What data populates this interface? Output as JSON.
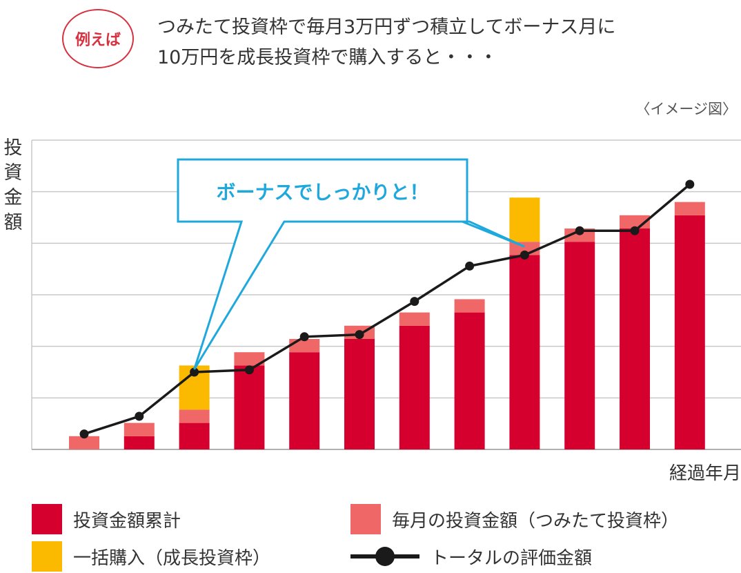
{
  "header": {
    "badge": "例えば",
    "line1": "つみたて投資枠で毎月3万円ずつ積立してボーナス月に",
    "line2": "10万円を成長投資枠で購入すると・・・"
  },
  "image_note": "〈イメージ図〉",
  "callout_text": "ボーナスでしっかりと！",
  "colors": {
    "cumulative": "#d6002f",
    "monthly": "#f06768",
    "lump": "#fbb900",
    "line": "#1a1a1a",
    "callout": "#1fa8dc",
    "grid": "#c8c8c8"
  },
  "legend": {
    "cumulative": "投資金額累計",
    "monthly": "毎月の投資金額（つみたて投資枠）",
    "lump": "一括購入（成長投資枠）",
    "line": "トータルの評価金額"
  },
  "chart_data": {
    "type": "bar",
    "stacked": true,
    "title": "",
    "xlabel": "経過年月",
    "ylabel": "投資金額",
    "categories": [
      "1",
      "2",
      "3",
      "4",
      "5",
      "6",
      "7",
      "8",
      "9",
      "10",
      "11",
      "12"
    ],
    "series": [
      {
        "name": "投資金額累計",
        "values": [
          0,
          3,
          6,
          19,
          22,
          25,
          28,
          31,
          44,
          47,
          50,
          53
        ]
      },
      {
        "name": "毎月の投資金額（つみたて投資枠）",
        "values": [
          3,
          3,
          3,
          3,
          3,
          3,
          3,
          3,
          3,
          3,
          3,
          3
        ]
      },
      {
        "name": "一括購入（成長投資枠）",
        "values": [
          0,
          0,
          10,
          0,
          0,
          0,
          0,
          0,
          10,
          0,
          0,
          0
        ]
      },
      {
        "name": "トータルの評価金額",
        "type": "line",
        "values": [
          3.5,
          7.5,
          17.5,
          18,
          25.5,
          26,
          33.5,
          41.5,
          44,
          49.5,
          49.5,
          60
        ]
      }
    ],
    "ylim": [
      0,
      70
    ],
    "grid": true,
    "axis_values_shown": false,
    "legend_position": "bottom"
  }
}
